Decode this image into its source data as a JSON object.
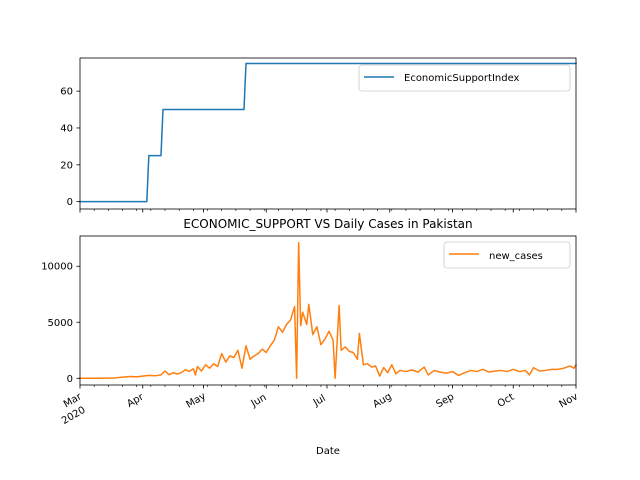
{
  "chart_data": [
    {
      "type": "line",
      "title": "",
      "xlabel": "",
      "ylabel": "",
      "ylim": [
        -4,
        78
      ],
      "y_ticks": [
        0,
        20,
        40,
        60
      ],
      "x_range": [
        "2020-03-01",
        "2020-11-01"
      ],
      "legend_position": "top-right",
      "grid": false,
      "series": [
        {
          "name": "EconomicSupportIndex",
          "color": "#1f77b4",
          "points": [
            [
              "2020-03-01",
              0
            ],
            [
              "2020-04-03",
              0
            ],
            [
              "2020-04-04",
              25
            ],
            [
              "2020-04-10",
              25
            ],
            [
              "2020-04-11",
              50
            ],
            [
              "2020-05-21",
              50
            ],
            [
              "2020-05-22",
              75
            ],
            [
              "2020-11-01",
              75
            ]
          ]
        }
      ]
    },
    {
      "type": "line",
      "title": "ECONOMIC_SUPPORT VS Daily Cases in Pakistan",
      "xlabel": "Date",
      "ylabel": "",
      "ylim": [
        -600,
        12700
      ],
      "y_ticks": [
        0,
        5000,
        10000
      ],
      "x_range": [
        "2020-03-01",
        "2020-11-01"
      ],
      "x_ticks": [
        {
          "date": "2020-03-01",
          "label": "Mar",
          "sublabel": "2020"
        },
        {
          "date": "2020-04-01",
          "label": "Apr",
          "sublabel": ""
        },
        {
          "date": "2020-05-01",
          "label": "May",
          "sublabel": ""
        },
        {
          "date": "2020-06-01",
          "label": "Jun",
          "sublabel": ""
        },
        {
          "date": "2020-07-01",
          "label": "Jul",
          "sublabel": ""
        },
        {
          "date": "2020-08-01",
          "label": "Aug",
          "sublabel": ""
        },
        {
          "date": "2020-09-01",
          "label": "Sep",
          "sublabel": ""
        },
        {
          "date": "2020-10-01",
          "label": "Oct",
          "sublabel": ""
        },
        {
          "date": "2020-11-01",
          "label": "Nov",
          "sublabel": ""
        }
      ],
      "legend_position": "top-right",
      "grid": false,
      "series": [
        {
          "name": "new_cases",
          "color": "#ff7f0e",
          "points": [
            [
              "2020-03-01",
              0
            ],
            [
              "2020-03-10",
              0
            ],
            [
              "2020-03-18",
              30
            ],
            [
              "2020-03-22",
              100
            ],
            [
              "2020-03-26",
              160
            ],
            [
              "2020-03-29",
              120
            ],
            [
              "2020-04-01",
              190
            ],
            [
              "2020-04-04",
              260
            ],
            [
              "2020-04-07",
              220
            ],
            [
              "2020-04-10",
              300
            ],
            [
              "2020-04-12",
              650
            ],
            [
              "2020-04-14",
              320
            ],
            [
              "2020-04-16",
              500
            ],
            [
              "2020-04-18",
              380
            ],
            [
              "2020-04-20",
              500
            ],
            [
              "2020-04-22",
              750
            ],
            [
              "2020-04-24",
              620
            ],
            [
              "2020-04-26",
              850
            ],
            [
              "2020-04-27",
              300
            ],
            [
              "2020-04-28",
              1050
            ],
            [
              "2020-04-30",
              650
            ],
            [
              "2020-05-02",
              1200
            ],
            [
              "2020-05-04",
              900
            ],
            [
              "2020-05-06",
              1300
            ],
            [
              "2020-05-08",
              1050
            ],
            [
              "2020-05-10",
              2200
            ],
            [
              "2020-05-12",
              1450
            ],
            [
              "2020-05-14",
              2000
            ],
            [
              "2020-05-16",
              1850
            ],
            [
              "2020-05-18",
              2500
            ],
            [
              "2020-05-20",
              900
            ],
            [
              "2020-05-22",
              2900
            ],
            [
              "2020-05-24",
              1700
            ],
            [
              "2020-05-26",
              2000
            ],
            [
              "2020-05-28",
              2200
            ],
            [
              "2020-05-30",
              2600
            ],
            [
              "2020-06-01",
              2300
            ],
            [
              "2020-06-03",
              2900
            ],
            [
              "2020-06-05",
              3400
            ],
            [
              "2020-06-07",
              4600
            ],
            [
              "2020-06-09",
              4100
            ],
            [
              "2020-06-11",
              4800
            ],
            [
              "2020-06-13",
              5200
            ],
            [
              "2020-06-15",
              6400
            ],
            [
              "2020-06-16",
              0
            ],
            [
              "2020-06-17",
              12100
            ],
            [
              "2020-06-18",
              4700
            ],
            [
              "2020-06-19",
              5900
            ],
            [
              "2020-06-21",
              4800
            ],
            [
              "2020-06-22",
              6600
            ],
            [
              "2020-06-24",
              3900
            ],
            [
              "2020-06-26",
              4600
            ],
            [
              "2020-06-28",
              3000
            ],
            [
              "2020-06-30",
              3500
            ],
            [
              "2020-07-02",
              4200
            ],
            [
              "2020-07-04",
              3400
            ],
            [
              "2020-07-05",
              0
            ],
            [
              "2020-07-07",
              6500
            ],
            [
              "2020-07-08",
              2500
            ],
            [
              "2020-07-10",
              2800
            ],
            [
              "2020-07-12",
              2400
            ],
            [
              "2020-07-14",
              2300
            ],
            [
              "2020-07-16",
              1700
            ],
            [
              "2020-07-17",
              4000
            ],
            [
              "2020-07-19",
              1200
            ],
            [
              "2020-07-21",
              1300
            ],
            [
              "2020-07-23",
              1000
            ],
            [
              "2020-07-25",
              1100
            ],
            [
              "2020-07-27",
              200
            ],
            [
              "2020-07-29",
              950
            ],
            [
              "2020-07-31",
              500
            ],
            [
              "2020-08-02",
              1200
            ],
            [
              "2020-08-04",
              400
            ],
            [
              "2020-08-06",
              700
            ],
            [
              "2020-08-09",
              600
            ],
            [
              "2020-08-12",
              750
            ],
            [
              "2020-08-15",
              550
            ],
            [
              "2020-08-18",
              1000
            ],
            [
              "2020-08-20",
              300
            ],
            [
              "2020-08-23",
              700
            ],
            [
              "2020-08-26",
              550
            ],
            [
              "2020-08-29",
              450
            ],
            [
              "2020-09-01",
              600
            ],
            [
              "2020-09-04",
              250
            ],
            [
              "2020-09-07",
              500
            ],
            [
              "2020-09-10",
              700
            ],
            [
              "2020-09-13",
              600
            ],
            [
              "2020-09-16",
              800
            ],
            [
              "2020-09-19",
              550
            ],
            [
              "2020-09-22",
              650
            ],
            [
              "2020-09-25",
              700
            ],
            [
              "2020-09-28",
              600
            ],
            [
              "2020-10-01",
              800
            ],
            [
              "2020-10-04",
              600
            ],
            [
              "2020-10-07",
              700
            ],
            [
              "2020-10-09",
              300
            ],
            [
              "2020-10-11",
              950
            ],
            [
              "2020-10-14",
              650
            ],
            [
              "2020-10-17",
              700
            ],
            [
              "2020-10-20",
              800
            ],
            [
              "2020-10-23",
              800
            ],
            [
              "2020-10-26",
              900
            ],
            [
              "2020-10-29",
              1100
            ],
            [
              "2020-10-31",
              900
            ],
            [
              "2020-11-01",
              1200
            ]
          ]
        }
      ]
    }
  ]
}
